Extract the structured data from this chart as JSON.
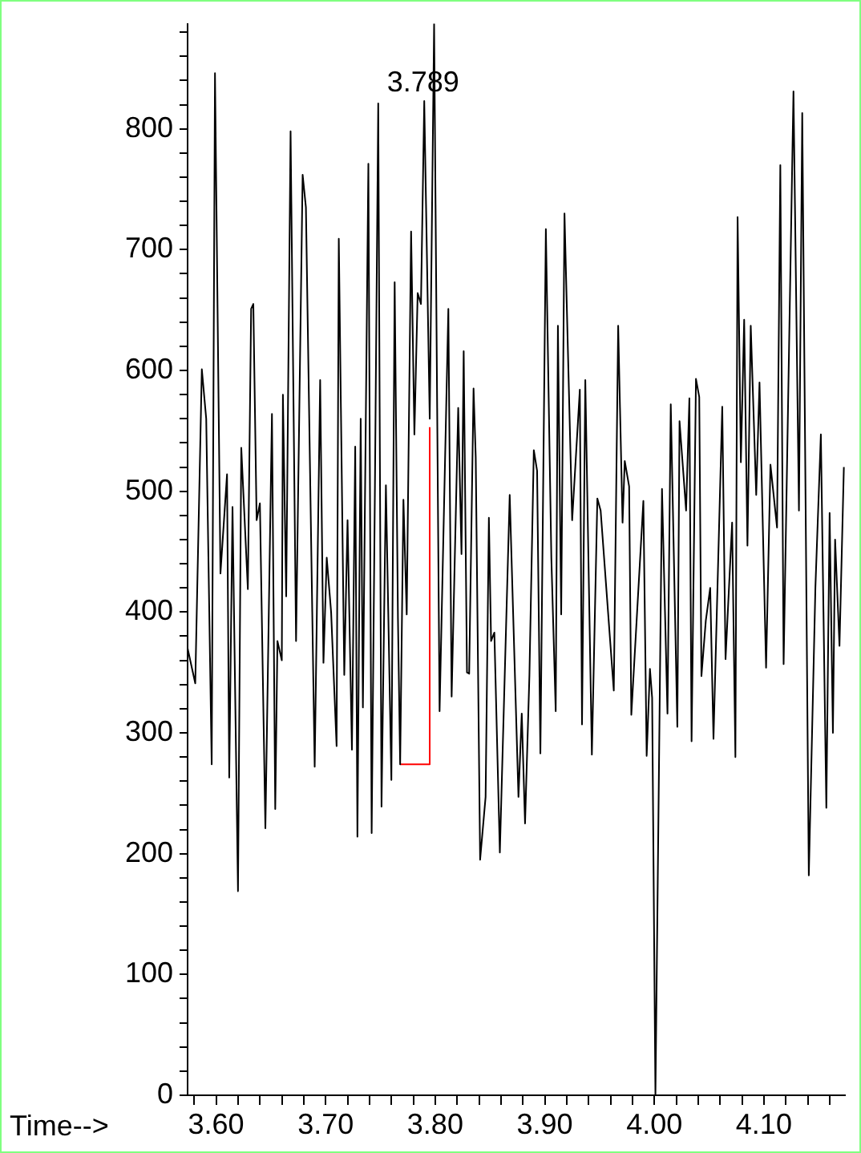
{
  "chart_data": {
    "type": "line",
    "xlabel": "Time-->",
    "marker": "none",
    "legend": false,
    "grid": false,
    "xlim": [
      3.574,
      4.174
    ],
    "ylim": [
      0,
      887
    ],
    "xticks": [
      {
        "value": 3.58,
        "label": null
      },
      {
        "value": 3.6,
        "label": "3.60"
      },
      {
        "value": 3.62,
        "label": null
      },
      {
        "value": 3.64,
        "label": null
      },
      {
        "value": 3.66,
        "label": null
      },
      {
        "value": 3.68,
        "label": null
      },
      {
        "value": 3.7,
        "label": "3.70"
      },
      {
        "value": 3.72,
        "label": null
      },
      {
        "value": 3.74,
        "label": null
      },
      {
        "value": 3.76,
        "label": null
      },
      {
        "value": 3.78,
        "label": null
      },
      {
        "value": 3.8,
        "label": "3.80"
      },
      {
        "value": 3.82,
        "label": null
      },
      {
        "value": 3.84,
        "label": null
      },
      {
        "value": 3.86,
        "label": null
      },
      {
        "value": 3.88,
        "label": null
      },
      {
        "value": 3.9,
        "label": "3.90"
      },
      {
        "value": 3.92,
        "label": null
      },
      {
        "value": 3.94,
        "label": null
      },
      {
        "value": 3.96,
        "label": null
      },
      {
        "value": 3.98,
        "label": null
      },
      {
        "value": 4.0,
        "label": "4.00"
      },
      {
        "value": 4.02,
        "label": null
      },
      {
        "value": 4.04,
        "label": null
      },
      {
        "value": 4.06,
        "label": null
      },
      {
        "value": 4.08,
        "label": null
      },
      {
        "value": 4.1,
        "label": "4.10"
      },
      {
        "value": 4.12,
        "label": null
      },
      {
        "value": 4.14,
        "label": null
      },
      {
        "value": 4.16,
        "label": null
      }
    ],
    "yticks": [
      0,
      {
        "value": 20,
        "label": null
      },
      {
        "value": 40,
        "label": null
      },
      {
        "value": 60,
        "label": null
      },
      {
        "value": 80,
        "label": null
      },
      100,
      {
        "value": 120,
        "label": null
      },
      {
        "value": 140,
        "label": null
      },
      {
        "value": 160,
        "label": null
      },
      {
        "value": 180,
        "label": null
      },
      200,
      {
        "value": 220,
        "label": null
      },
      {
        "value": 240,
        "label": null
      },
      {
        "value": 260,
        "label": null
      },
      {
        "value": 280,
        "label": null
      },
      300,
      {
        "value": 320,
        "label": null
      },
      {
        "value": 340,
        "label": null
      },
      {
        "value": 360,
        "label": null
      },
      {
        "value": 380,
        "label": null
      },
      400,
      {
        "value": 420,
        "label": null
      },
      {
        "value": 440,
        "label": null
      },
      {
        "value": 460,
        "label": null
      },
      {
        "value": 480,
        "label": null
      },
      500,
      {
        "value": 520,
        "label": null
      },
      {
        "value": 540,
        "label": null
      },
      {
        "value": 560,
        "label": null
      },
      {
        "value": 580,
        "label": null
      },
      600,
      {
        "value": 620,
        "label": null
      },
      {
        "value": 640,
        "label": null
      },
      {
        "value": 660,
        "label": null
      },
      {
        "value": 680,
        "label": null
      },
      700,
      {
        "value": 720,
        "label": null
      },
      {
        "value": 740,
        "label": null
      },
      {
        "value": 760,
        "label": null
      },
      {
        "value": 780,
        "label": null
      },
      800,
      {
        "value": 820,
        "label": null
      },
      {
        "value": 840,
        "label": null
      },
      {
        "value": 860,
        "label": null
      },
      {
        "value": 880,
        "label": null
      }
    ],
    "annotations": [
      {
        "text": "3.789",
        "x": 3.789,
        "y": 823
      }
    ],
    "series": [
      {
        "color": "#000000",
        "x": [
          3.574,
          3.581,
          3.587,
          3.591,
          3.596,
          3.599,
          3.604,
          3.61,
          3.612,
          3.615,
          3.62,
          3.623,
          3.629,
          3.632,
          3.634,
          3.637,
          3.64,
          3.645,
          3.651,
          3.654,
          3.656,
          3.66,
          3.661,
          3.664,
          3.668,
          3.673,
          3.679,
          3.682,
          3.69,
          3.695,
          3.698,
          3.701,
          3.705,
          3.71,
          3.712,
          3.717,
          3.72,
          3.724,
          3.727,
          3.729,
          3.732,
          3.734,
          3.739,
          3.742,
          3.745,
          3.748,
          3.751,
          3.755,
          3.76,
          3.763,
          3.766,
          3.768,
          3.771,
          3.774,
          3.778,
          3.781,
          3.784,
          3.787,
          3.79,
          3.795,
          3.799,
          3.804,
          3.812,
          3.815,
          3.821,
          3.824,
          3.826,
          3.829,
          3.831,
          3.835,
          3.837,
          3.841,
          3.846,
          3.849,
          3.851,
          3.854,
          3.859,
          3.868,
          3.876,
          3.879,
          3.882,
          3.886,
          3.89,
          3.893,
          3.896,
          3.901,
          3.906,
          3.91,
          3.912,
          3.915,
          3.918,
          3.925,
          3.932,
          3.934,
          3.937,
          3.943,
          3.948,
          3.951,
          3.963,
          3.967,
          3.971,
          3.973,
          3.977,
          3.979,
          3.99,
          3.993,
          3.996,
          3.998,
          4.001,
          4.007,
          4.012,
          4.015,
          4.021,
          4.023,
          4.029,
          4.032,
          4.034,
          4.038,
          4.041,
          4.043,
          4.047,
          4.051,
          4.054,
          4.062,
          4.065,
          4.071,
          4.074,
          4.076,
          4.079,
          4.082,
          4.085,
          4.088,
          4.093,
          4.096,
          4.102,
          4.106,
          4.112,
          4.115,
          4.118,
          4.127,
          4.132,
          4.135,
          4.141,
          4.147,
          4.152,
          4.157,
          4.16,
          4.163,
          4.165,
          4.169,
          4.173
        ],
        "values": [
          370,
          341,
          601,
          560,
          274,
          846,
          432,
          514,
          263,
          487,
          169,
          536,
          419,
          651,
          655,
          476,
          490,
          221,
          564,
          237,
          376,
          360,
          580,
          413,
          798,
          376,
          762,
          735,
          272,
          592,
          358,
          445,
          400,
          289,
          709,
          348,
          476,
          286,
          537,
          214,
          560,
          321,
          771,
          217,
          505,
          821,
          239,
          505,
          261,
          673,
          395,
          274,
          493,
          398,
          715,
          547,
          664,
          655,
          823,
          560,
          887,
          318,
          651,
          330,
          569,
          448,
          616,
          350,
          349,
          585,
          528,
          195,
          247,
          478,
          376,
          383,
          201,
          497,
          247,
          316,
          225,
          348,
          534,
          517,
          283,
          717,
          445,
          318,
          637,
          398,
          730,
          476,
          584,
          307,
          592,
          282,
          494,
          484,
          335,
          637,
          474,
          525,
          504,
          315,
          492,
          281,
          353,
          329,
          0,
          502,
          316,
          572,
          305,
          558,
          484,
          577,
          293,
          593,
          578,
          347,
          393,
          420,
          295,
          570,
          361,
          474,
          280,
          727,
          524,
          642,
          455,
          637,
          497,
          590,
          354,
          522,
          470,
          770,
          357,
          831,
          484,
          813,
          182,
          420,
          547,
          238,
          482,
          300,
          460,
          372,
          520
        ]
      },
      {
        "color": "#ff0000",
        "x": [
          3.768,
          3.795,
          3.795
        ],
        "values": [
          274,
          274,
          553
        ]
      }
    ]
  }
}
